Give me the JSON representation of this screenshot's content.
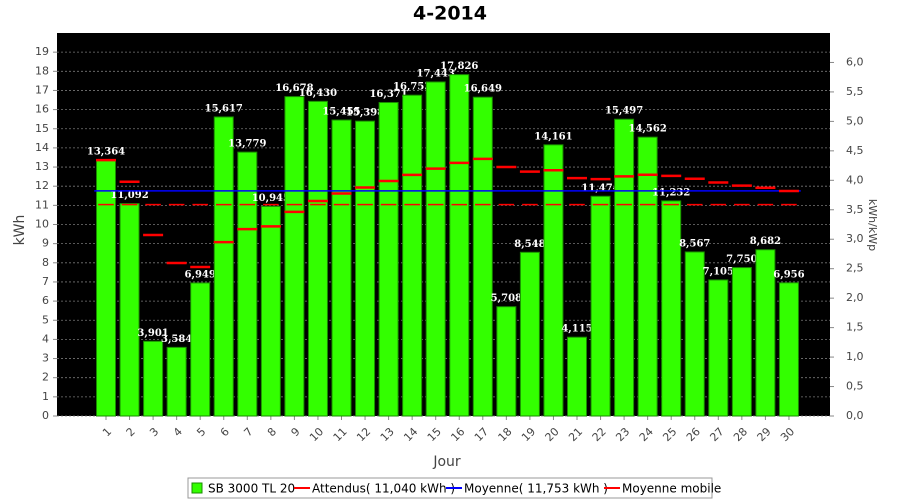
{
  "chart_data": {
    "type": "bar",
    "title": "4-2014",
    "x_label": "Jour",
    "y_label": "kWh",
    "y2_label": "kWh/kWp",
    "categories": [
      "1",
      "2",
      "3",
      "4",
      "5",
      "6",
      "7",
      "8",
      "9",
      "10",
      "11",
      "12",
      "13",
      "14",
      "15",
      "16",
      "17",
      "18",
      "19",
      "20",
      "21",
      "22",
      "23",
      "24",
      "25",
      "26",
      "27",
      "28",
      "29",
      "30"
    ],
    "ylim": [
      0,
      20
    ],
    "yticks": [
      0,
      1,
      2,
      3,
      4,
      5,
      6,
      7,
      8,
      9,
      10,
      11,
      12,
      13,
      14,
      15,
      16,
      17,
      18,
      19
    ],
    "y2lim": [
      0,
      6.5
    ],
    "y2ticks": [
      {
        "value": 0,
        "label": "0,0"
      },
      {
        "value": 0.5,
        "label": "0,5"
      },
      {
        "value": 1,
        "label": "1,0"
      },
      {
        "value": 1.5,
        "label": "1,5"
      },
      {
        "value": 2,
        "label": "2,0"
      },
      {
        "value": 2.5,
        "label": "2,5"
      },
      {
        "value": 3,
        "label": "3,0"
      },
      {
        "value": 3.5,
        "label": "3,5"
      },
      {
        "value": 4,
        "label": "4,0"
      },
      {
        "value": 4.5,
        "label": "4,5"
      },
      {
        "value": 5,
        "label": "5,0"
      },
      {
        "value": 5.5,
        "label": "5,5"
      },
      {
        "value": 6,
        "label": "6,0"
      }
    ],
    "grid": true,
    "legend": "bottom",
    "series": [
      {
        "name": "SB 3000 TL 20",
        "type": "bar",
        "color": "#33ff00",
        "values": [
          13.364,
          11.092,
          3.901,
          3.584,
          6.949,
          15.617,
          13.779,
          10.945,
          16.678,
          16.43,
          15.455,
          15.398,
          16.371,
          16.753,
          17.443,
          17.826,
          16.649,
          5.708,
          8.548,
          14.161,
          4.115,
          11.474,
          15.497,
          14.562,
          11.232,
          8.567,
          7.105,
          7.75,
          8.682,
          6.956
        ],
        "value_labels": [
          "13,364",
          "11,092",
          "3,901",
          "3,584",
          "6,949",
          "15,617",
          "13,779",
          "10,945",
          "16,678",
          "16,430",
          "15,455",
          "15,398",
          "16,371",
          "16,753",
          "17,443",
          "17,826",
          "16,649",
          "5,708",
          "8,548",
          "14,161",
          "4,115",
          "11,474",
          "15,497",
          "14,562",
          "11,232",
          "8,567",
          "7,105",
          "7,750",
          "8,682",
          "6,956"
        ]
      },
      {
        "name": "Attendus( 11,040 kWh )",
        "type": "dash",
        "color": "#ff0000",
        "value": 11.04
      },
      {
        "name": "Moyenne( 11,753 kWh )",
        "type": "hline",
        "color": "#0000ff",
        "value": 11.753
      },
      {
        "name": "Moyenne mobile",
        "type": "step",
        "color": "#ff0000",
        "values": [
          13.36,
          12.23,
          9.45,
          7.99,
          7.78,
          9.08,
          9.76,
          9.9,
          10.66,
          11.23,
          11.62,
          11.93,
          12.27,
          12.59,
          12.92,
          13.22,
          13.43,
          13,
          12.76,
          12.83,
          12.42,
          12.37,
          12.51,
          12.6,
          12.54,
          12.39,
          12.19,
          12.03,
          11.92,
          11.75
        ]
      }
    ]
  }
}
